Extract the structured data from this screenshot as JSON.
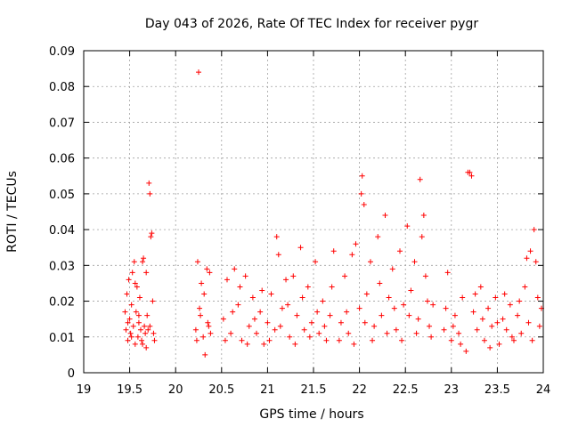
{
  "chart_data": {
    "type": "scatter",
    "title": "Day 043 of 2026, Rate Of TEC Index for receiver pygr",
    "xlabel": "GPS time / hours",
    "ylabel": "ROTI / TECUs",
    "xlim": [
      19,
      24
    ],
    "ylim": [
      0,
      0.09
    ],
    "x_ticks": [
      "19",
      "19.5",
      "20",
      "20.5",
      "21",
      "21.5",
      "22",
      "22.5",
      "23",
      "23.5",
      "24"
    ],
    "y_ticks": [
      "0",
      "0.01",
      "0.02",
      "0.03",
      "0.04",
      "0.05",
      "0.06",
      "0.07",
      "0.08",
      "0.09"
    ],
    "grid": true,
    "marker": "+",
    "marker_color": "#ff0000",
    "series": [
      {
        "points": [
          [
            19.46,
            0.012
          ],
          [
            19.47,
            0.022
          ],
          [
            19.48,
            0.009
          ],
          [
            19.49,
            0.026
          ],
          [
            19.5,
            0.015
          ],
          [
            19.51,
            0.011
          ],
          [
            19.52,
            0.019
          ],
          [
            19.53,
            0.028
          ],
          [
            19.54,
            0.013
          ],
          [
            19.55,
            0.031
          ],
          [
            19.56,
            0.008
          ],
          [
            19.57,
            0.017
          ],
          [
            19.58,
            0.024
          ],
          [
            19.59,
            0.01
          ],
          [
            19.6,
            0.014
          ],
          [
            19.61,
            0.021
          ],
          [
            19.62,
            0.012
          ],
          [
            19.63,
            0.009
          ],
          [
            19.64,
            0.031
          ],
          [
            19.65,
            0.032
          ],
          [
            19.66,
            0.013
          ],
          [
            19.67,
            0.011
          ],
          [
            19.68,
            0.007
          ],
          [
            19.69,
            0.016
          ],
          [
            19.7,
            0.012
          ],
          [
            19.71,
            0.053
          ],
          [
            19.72,
            0.05
          ],
          [
            19.73,
            0.038
          ],
          [
            19.74,
            0.039
          ],
          [
            19.75,
            0.02
          ],
          [
            19.76,
            0.011
          ],
          [
            19.77,
            0.009
          ],
          [
            19.45,
            0.017
          ],
          [
            19.48,
            0.014
          ],
          [
            19.52,
            0.01
          ],
          [
            19.56,
            0.025
          ],
          [
            19.6,
            0.016
          ],
          [
            19.64,
            0.008
          ],
          [
            19.68,
            0.028
          ],
          [
            19.72,
            0.013
          ],
          [
            20.25,
            0.084
          ],
          [
            20.22,
            0.012
          ],
          [
            20.24,
            0.031
          ],
          [
            20.26,
            0.018
          ],
          [
            20.28,
            0.025
          ],
          [
            20.3,
            0.01
          ],
          [
            20.32,
            0.005
          ],
          [
            20.34,
            0.029
          ],
          [
            20.35,
            0.014
          ],
          [
            20.37,
            0.028
          ],
          [
            20.38,
            0.011
          ],
          [
            20.23,
            0.009
          ],
          [
            20.27,
            0.016
          ],
          [
            20.31,
            0.022
          ],
          [
            20.36,
            0.013
          ],
          [
            20.52,
            0.015
          ],
          [
            20.56,
            0.026
          ],
          [
            20.6,
            0.011
          ],
          [
            20.64,
            0.029
          ],
          [
            20.68,
            0.019
          ],
          [
            20.72,
            0.009
          ],
          [
            20.76,
            0.027
          ],
          [
            20.8,
            0.013
          ],
          [
            20.84,
            0.021
          ],
          [
            20.88,
            0.011
          ],
          [
            20.92,
            0.017
          ],
          [
            20.96,
            0.008
          ],
          [
            21.0,
            0.014
          ],
          [
            21.04,
            0.022
          ],
          [
            21.08,
            0.012
          ],
          [
            21.1,
            0.038
          ],
          [
            21.12,
            0.033
          ],
          [
            21.16,
            0.018
          ],
          [
            21.2,
            0.026
          ],
          [
            21.24,
            0.01
          ],
          [
            21.28,
            0.027
          ],
          [
            21.32,
            0.016
          ],
          [
            21.36,
            0.035
          ],
          [
            21.4,
            0.012
          ],
          [
            21.44,
            0.024
          ],
          [
            21.48,
            0.014
          ],
          [
            21.52,
            0.031
          ],
          [
            21.56,
            0.011
          ],
          [
            21.6,
            0.02
          ],
          [
            21.64,
            0.009
          ],
          [
            21.68,
            0.016
          ],
          [
            21.72,
            0.034
          ],
          [
            20.54,
            0.009
          ],
          [
            20.62,
            0.017
          ],
          [
            20.7,
            0.024
          ],
          [
            20.78,
            0.008
          ],
          [
            20.86,
            0.015
          ],
          [
            20.94,
            0.023
          ],
          [
            21.02,
            0.009
          ],
          [
            21.14,
            0.013
          ],
          [
            21.22,
            0.019
          ],
          [
            21.3,
            0.008
          ],
          [
            21.38,
            0.021
          ],
          [
            21.46,
            0.01
          ],
          [
            21.54,
            0.017
          ],
          [
            21.62,
            0.013
          ],
          [
            21.7,
            0.024
          ],
          [
            21.8,
            0.014
          ],
          [
            21.84,
            0.027
          ],
          [
            21.88,
            0.011
          ],
          [
            21.92,
            0.033
          ],
          [
            21.96,
            0.036
          ],
          [
            22.0,
            0.018
          ],
          [
            22.02,
            0.05
          ],
          [
            22.03,
            0.055
          ],
          [
            22.05,
            0.047
          ],
          [
            22.08,
            0.022
          ],
          [
            22.12,
            0.031
          ],
          [
            22.16,
            0.013
          ],
          [
            22.2,
            0.038
          ],
          [
            22.24,
            0.016
          ],
          [
            22.28,
            0.044
          ],
          [
            22.32,
            0.021
          ],
          [
            22.36,
            0.029
          ],
          [
            22.4,
            0.012
          ],
          [
            22.44,
            0.034
          ],
          [
            22.48,
            0.019
          ],
          [
            22.52,
            0.041
          ],
          [
            22.56,
            0.023
          ],
          [
            22.6,
            0.031
          ],
          [
            22.64,
            0.015
          ],
          [
            22.66,
            0.054
          ],
          [
            22.68,
            0.038
          ],
          [
            22.7,
            0.044
          ],
          [
            22.72,
            0.027
          ],
          [
            22.76,
            0.013
          ],
          [
            22.8,
            0.019
          ],
          [
            21.78,
            0.009
          ],
          [
            21.86,
            0.017
          ],
          [
            21.94,
            0.008
          ],
          [
            22.06,
            0.014
          ],
          [
            22.14,
            0.009
          ],
          [
            22.22,
            0.025
          ],
          [
            22.3,
            0.011
          ],
          [
            22.38,
            0.018
          ],
          [
            22.46,
            0.009
          ],
          [
            22.54,
            0.016
          ],
          [
            22.62,
            0.011
          ],
          [
            22.74,
            0.02
          ],
          [
            22.78,
            0.01
          ],
          [
            22.92,
            0.012
          ],
          [
            22.96,
            0.028
          ],
          [
            23.0,
            0.009
          ],
          [
            23.04,
            0.016
          ],
          [
            23.08,
            0.011
          ],
          [
            23.12,
            0.021
          ],
          [
            23.16,
            0.006
          ],
          [
            23.18,
            0.056
          ],
          [
            23.2,
            0.056
          ],
          [
            23.22,
            0.055
          ],
          [
            23.24,
            0.017
          ],
          [
            23.28,
            0.012
          ],
          [
            23.32,
            0.024
          ],
          [
            23.36,
            0.009
          ],
          [
            23.4,
            0.018
          ],
          [
            23.44,
            0.013
          ],
          [
            23.48,
            0.021
          ],
          [
            23.52,
            0.008
          ],
          [
            23.56,
            0.015
          ],
          [
            23.6,
            0.012
          ],
          [
            23.64,
            0.019
          ],
          [
            23.68,
            0.009
          ],
          [
            23.72,
            0.016
          ],
          [
            23.76,
            0.011
          ],
          [
            23.8,
            0.024
          ],
          [
            23.82,
            0.032
          ],
          [
            23.86,
            0.034
          ],
          [
            23.9,
            0.04
          ],
          [
            23.92,
            0.031
          ],
          [
            23.94,
            0.021
          ],
          [
            23.96,
            0.013
          ],
          [
            23.98,
            0.018
          ],
          [
            22.94,
            0.018
          ],
          [
            23.02,
            0.013
          ],
          [
            23.1,
            0.008
          ],
          [
            23.26,
            0.022
          ],
          [
            23.34,
            0.015
          ],
          [
            23.42,
            0.007
          ],
          [
            23.5,
            0.014
          ],
          [
            23.58,
            0.022
          ],
          [
            23.66,
            0.01
          ],
          [
            23.74,
            0.02
          ],
          [
            23.84,
            0.014
          ],
          [
            23.88,
            0.009
          ]
        ]
      }
    ]
  }
}
